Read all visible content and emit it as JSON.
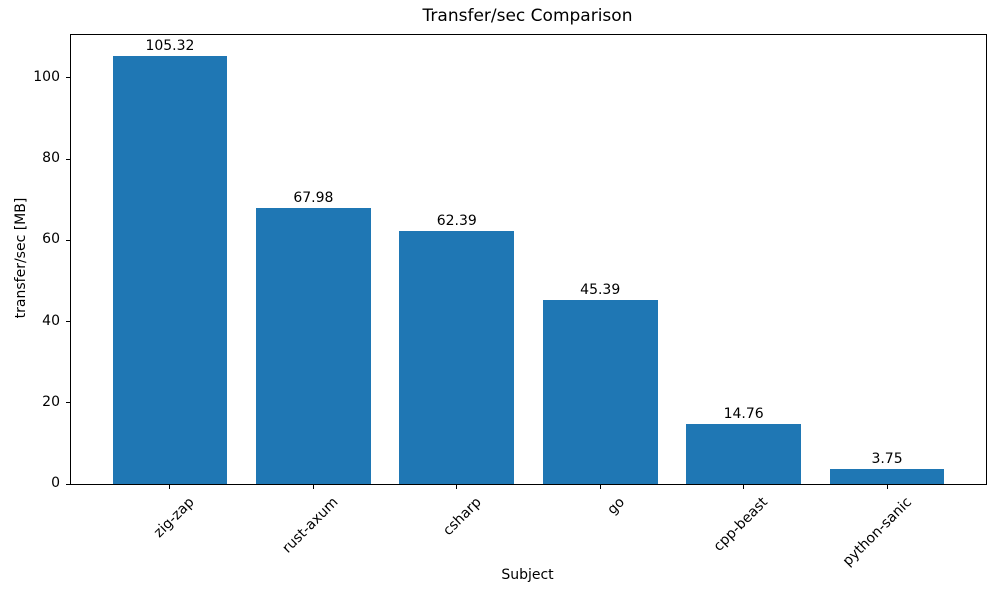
{
  "chart_data": {
    "type": "bar",
    "title": "Transfer/sec Comparison",
    "xlabel": "Subject",
    "ylabel": "transfer/sec [MB]",
    "categories": [
      "zig-zap",
      "rust-axum",
      "csharp",
      "go",
      "cpp-beast",
      "python-sanic"
    ],
    "values": [
      105.32,
      67.98,
      62.39,
      45.39,
      14.76,
      3.75
    ],
    "value_labels": [
      "105.32",
      "67.98",
      "62.39",
      "45.39",
      "14.76",
      "3.75"
    ],
    "yticks": [
      0,
      20,
      40,
      60,
      80,
      100
    ],
    "ylim": [
      0,
      110.59
    ],
    "xtick_rotation_deg": 45,
    "grid": false,
    "legend_position": "none",
    "bar_color": "#1f77b4",
    "axis_color": "#000000",
    "background_color": "#ffffff"
  }
}
